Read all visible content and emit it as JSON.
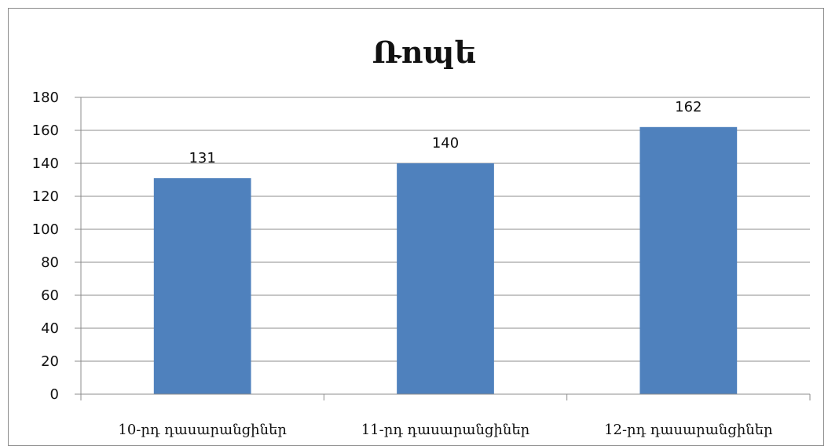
{
  "chart_data": {
    "type": "bar",
    "title": "Ռոպե",
    "categories": [
      "10-րդ դասարանցիներ",
      "11-րդ դասարանցիներ",
      "12-րդ դասարանցիներ"
    ],
    "values": [
      131,
      140,
      162
    ],
    "data_labels": [
      "131",
      "140",
      "162"
    ],
    "ylim": [
      0,
      180
    ],
    "yticks": [
      "0",
      "20",
      "40",
      "60",
      "80",
      "100",
      "120",
      "140",
      "160",
      "180"
    ],
    "grid": true,
    "legend": "none",
    "xlabel": "",
    "ylabel": ""
  },
  "colors": {
    "bar": "#4f81bd",
    "grid": "#8c8c8c",
    "axis": "#8c8c8c"
  }
}
